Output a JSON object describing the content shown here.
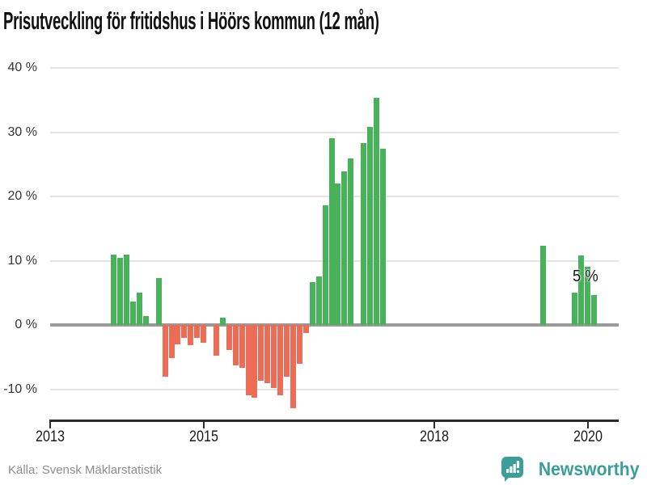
{
  "title": "Prisutveckling för fritidshus i Höörs kommun (12 mån)",
  "source": {
    "label": "Källa: Svensk Mäklarstatistik"
  },
  "brand": {
    "name": "Newsworthy",
    "icon": "newsworthy-speech-bubble-bar-chart-icon",
    "color": "#3a9e99"
  },
  "colors": {
    "positive_bar": "#48b25a",
    "negative_bar": "#ec6c55",
    "gridline": "#e4e4e4",
    "zero_line": "#9a9a9a",
    "axis": "#2b2b2b",
    "title_text": "#111111",
    "source_text": "#8d8d8d"
  },
  "chart_data": {
    "type": "bar",
    "title": "Prisutveckling för fritidshus i Höörs kommun (12 mån)",
    "xlabel": "",
    "ylabel": "",
    "unit": "%",
    "grid": true,
    "legend": "none",
    "ylim": [
      -14.5,
      42.5
    ],
    "x_range_years": [
      2013,
      2020.5
    ],
    "y_ticks": [
      {
        "label": "40 %",
        "value": 40
      },
      {
        "label": "30 %",
        "value": 30
      },
      {
        "label": "20 %",
        "value": 20
      },
      {
        "label": "10 %",
        "value": 10
      },
      {
        "label": "0 %",
        "value": 0
      },
      {
        "label": "-10 %",
        "value": -10
      }
    ],
    "x_ticks": [
      {
        "label": "2013",
        "year": 2013
      },
      {
        "label": "2015",
        "year": 2015
      },
      {
        "label": "2018",
        "year": 2018
      },
      {
        "label": "2020",
        "year": 2020
      }
    ],
    "annotation": {
      "text": "5 %",
      "month": "2020-02"
    },
    "series": [
      {
        "month": "2013-11",
        "value": 10.9
      },
      {
        "month": "2013-12",
        "value": 10.4
      },
      {
        "month": "2014-01",
        "value": 11.0
      },
      {
        "month": "2014-02",
        "value": 3.6
      },
      {
        "month": "2014-03",
        "value": 5.1
      },
      {
        "month": "2014-04",
        "value": 1.4
      },
      {
        "month": "2014-06",
        "value": 7.3
      },
      {
        "month": "2014-07",
        "value": -8.0
      },
      {
        "month": "2014-08",
        "value": -5.1
      },
      {
        "month": "2014-09",
        "value": -3.0
      },
      {
        "month": "2014-10",
        "value": -2.0
      },
      {
        "month": "2014-11",
        "value": -3.1
      },
      {
        "month": "2014-12",
        "value": -2.0
      },
      {
        "month": "2015-01",
        "value": -2.8
      },
      {
        "month": "2015-03",
        "value": -4.8
      },
      {
        "month": "2015-04",
        "value": 1.2
      },
      {
        "month": "2015-05",
        "value": -3.9
      },
      {
        "month": "2015-06",
        "value": -6.3
      },
      {
        "month": "2015-07",
        "value": -6.7
      },
      {
        "month": "2015-08",
        "value": -10.9
      },
      {
        "month": "2015-09",
        "value": -11.3
      },
      {
        "month": "2015-10",
        "value": -8.7
      },
      {
        "month": "2015-11",
        "value": -9.1
      },
      {
        "month": "2015-12",
        "value": -9.8
      },
      {
        "month": "2016-01",
        "value": -10.9
      },
      {
        "month": "2016-02",
        "value": -8.1
      },
      {
        "month": "2016-03",
        "value": -13.0
      },
      {
        "month": "2016-04",
        "value": -6.0
      },
      {
        "month": "2016-05",
        "value": -1.2
      },
      {
        "month": "2016-06",
        "value": 6.7
      },
      {
        "month": "2016-07",
        "value": 7.5
      },
      {
        "month": "2016-08",
        "value": 18.6
      },
      {
        "month": "2016-09",
        "value": 29.0
      },
      {
        "month": "2016-10",
        "value": 22.0
      },
      {
        "month": "2016-11",
        "value": 23.9
      },
      {
        "month": "2016-12",
        "value": 25.9
      },
      {
        "month": "2017-02",
        "value": 28.3
      },
      {
        "month": "2017-03",
        "value": 30.8
      },
      {
        "month": "2017-04",
        "value": 35.4
      },
      {
        "month": "2017-05",
        "value": 27.4
      },
      {
        "month": "2019-06",
        "value": 12.3
      },
      {
        "month": "2019-11",
        "value": 5.0
      },
      {
        "month": "2019-12",
        "value": 10.8
      },
      {
        "month": "2020-01",
        "value": 9.1
      },
      {
        "month": "2020-02",
        "value": 4.7
      }
    ]
  }
}
